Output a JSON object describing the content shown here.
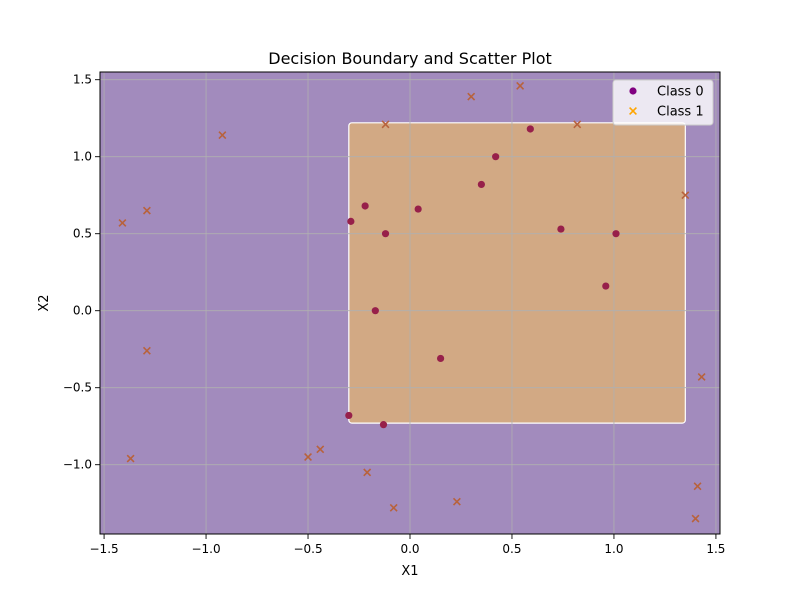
{
  "chart_data": {
    "type": "scatter",
    "title": "Decision Boundary and Scatter Plot",
    "xlabel": "X1",
    "ylabel": "X2",
    "xlim": [
      -1.52,
      1.52
    ],
    "ylim": [
      -1.45,
      1.55
    ],
    "xticks": [
      -1.5,
      -1.0,
      -0.5,
      0.0,
      0.5,
      1.0,
      1.5
    ],
    "xtick_labels": [
      "−1.5",
      "−1.0",
      "−0.5",
      "0.0",
      "0.5",
      "1.0",
      "1.5"
    ],
    "yticks": [
      -1.0,
      -0.5,
      0.0,
      0.5,
      1.0,
      1.5
    ],
    "ytick_labels": [
      "−1.0",
      "−0.5",
      "0.0",
      "0.5",
      "1.0",
      "1.5"
    ],
    "grid": true,
    "legend_position": "top-right",
    "background_region_color": "#a28bbd",
    "decision_region": {
      "label": "Class 1 region",
      "x_range": [
        -0.3,
        1.35
      ],
      "y_range": [
        -0.73,
        1.22
      ],
      "color": "#d2a984"
    },
    "series": [
      {
        "name": "Class 0",
        "marker": "circle",
        "color": "#800080",
        "point_color": "#97204a",
        "points": [
          [
            -0.29,
            0.58
          ],
          [
            -0.22,
            0.68
          ],
          [
            -0.12,
            0.5
          ],
          [
            -0.17,
            0.0
          ],
          [
            0.04,
            0.66
          ],
          [
            0.35,
            0.82
          ],
          [
            0.42,
            1.0
          ],
          [
            0.59,
            1.18
          ],
          [
            0.74,
            0.53
          ],
          [
            1.01,
            0.5
          ],
          [
            0.96,
            0.16
          ],
          [
            0.15,
            -0.31
          ],
          [
            -0.3,
            -0.68
          ],
          [
            -0.13,
            -0.74
          ]
        ]
      },
      {
        "name": "Class 1",
        "marker": "x",
        "color": "#ffa500",
        "point_color": "#b8623c",
        "points": [
          [
            -1.41,
            0.57
          ],
          [
            -1.29,
            0.65
          ],
          [
            -0.92,
            1.14
          ],
          [
            -1.29,
            -0.26
          ],
          [
            -1.37,
            -0.96
          ],
          [
            -0.5,
            -0.95
          ],
          [
            -0.44,
            -0.9
          ],
          [
            -0.21,
            -1.05
          ],
          [
            -0.08,
            -1.28
          ],
          [
            0.23,
            -1.24
          ],
          [
            0.3,
            1.39
          ],
          [
            0.54,
            1.46
          ],
          [
            -0.12,
            1.21
          ],
          [
            0.82,
            1.21
          ],
          [
            1.35,
            0.75
          ],
          [
            1.43,
            -0.43
          ],
          [
            1.41,
            -1.14
          ],
          [
            1.4,
            -1.35
          ]
        ]
      }
    ]
  }
}
